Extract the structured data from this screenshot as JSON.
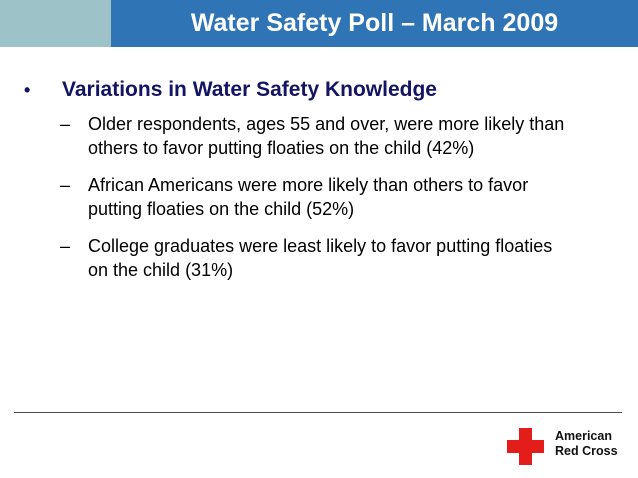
{
  "slide": {
    "title": "Water Safety Poll – March 2009",
    "main_bullet": {
      "marker": "•",
      "text": "Variations in Water Safety Knowledge"
    },
    "sub_bullets": [
      {
        "marker": "–",
        "text": "Older respondents, ages 55 and over, were more likely than others to favor putting floaties on the child (42%)"
      },
      {
        "marker": "–",
        "text": "African Americans were more likely than others to favor putting floaties on the child (52%)"
      },
      {
        "marker": "–",
        "text": "College graduates were least likely to favor putting floaties on the child (31%)"
      }
    ]
  },
  "logo": {
    "line1": "American",
    "line2": "Red Cross"
  },
  "colors": {
    "header_bar": "#2f74b5",
    "header_accent": "#9dc3c9",
    "heading_text": "#141464",
    "cross_red": "#e31d1a"
  }
}
